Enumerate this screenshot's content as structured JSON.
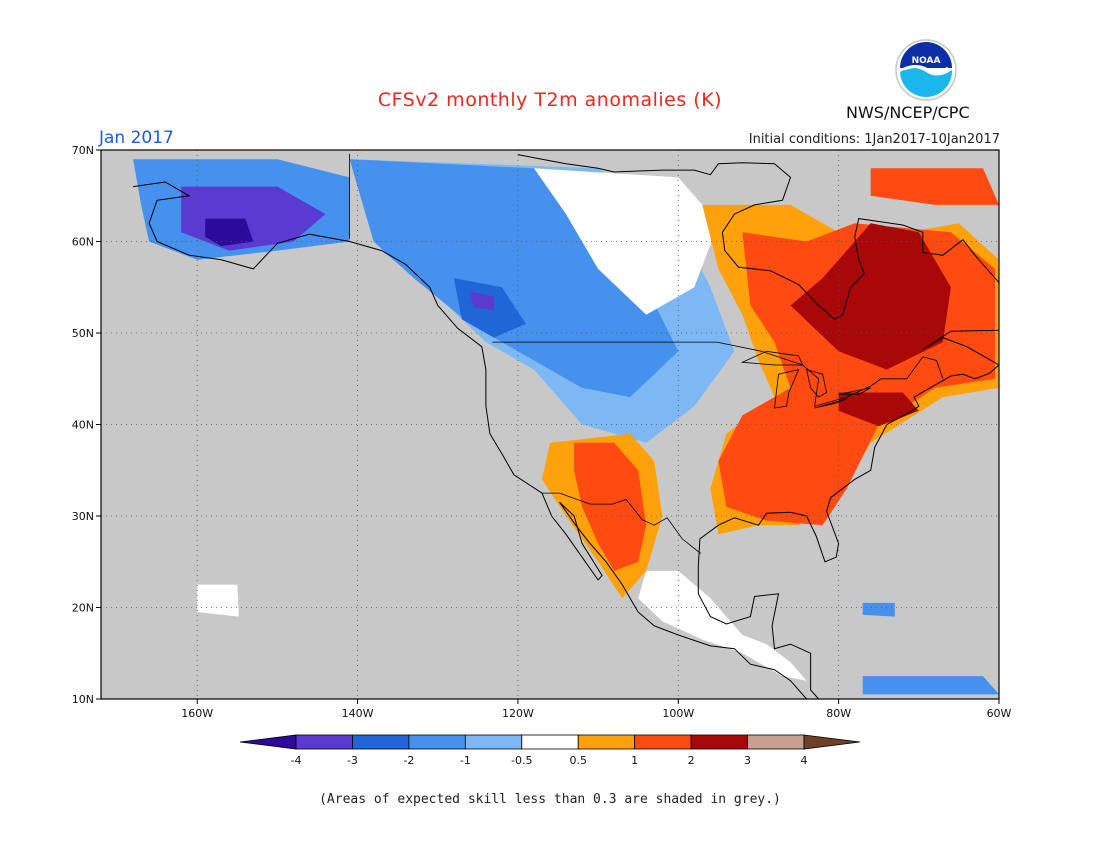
{
  "title": "CFSv2 monthly T2m anomalies (K)",
  "month_label": "Jan 2017",
  "initial_conditions": "Initial conditions: 1Jan2017-10Jan2017",
  "agency": "NWS/NCEP/CPC",
  "logo_text": "NOAA",
  "footnote": "(Areas of expected skill less than 0.3 are shaded in grey.)",
  "map": {
    "lon_range": [
      -172,
      -60
    ],
    "lat_range": [
      10,
      70
    ],
    "lat_ticks": [
      {
        "value": 70,
        "label": "70N"
      },
      {
        "value": 60,
        "label": "60N"
      },
      {
        "value": 50,
        "label": "50N"
      },
      {
        "value": 40,
        "label": "40N"
      },
      {
        "value": 30,
        "label": "30N"
      },
      {
        "value": 20,
        "label": "20N"
      },
      {
        "value": 10,
        "label": "10N"
      }
    ],
    "lon_ticks": [
      {
        "value": -160,
        "label": "160W"
      },
      {
        "value": -140,
        "label": "140W"
      },
      {
        "value": -120,
        "label": "120W"
      },
      {
        "value": -100,
        "label": "100W"
      },
      {
        "value": -80,
        "label": "80W"
      },
      {
        "value": -60,
        "label": "60W"
      }
    ],
    "grid": "dotted"
  },
  "colors": {
    "skill_grey": "#c8c8c8",
    "ocean": "#c8c8c8",
    "coast": "#000000",
    "bins": [
      "#2c0a9a",
      "#5a3ad0",
      "#2166d8",
      "#4690ee",
      "#7db8f5",
      "#ffffff",
      "#ffa10a",
      "#ff4a12",
      "#a80808",
      "#c8a090",
      "#6e4028"
    ]
  },
  "colorbar": {
    "ticks": [
      "-4",
      "-3",
      "-2",
      "-1",
      "-0.5",
      "0.5",
      "1",
      "2",
      "3",
      "4"
    ],
    "colors": [
      "#2c0a9a",
      "#5a3ad0",
      "#2166d8",
      "#4690ee",
      "#7db8f5",
      "#ffffff",
      "#ffa10a",
      "#ff4a12",
      "#a80808",
      "#c8a090",
      "#6e4028"
    ]
  },
  "regions": [
    {
      "name": "alaska-cold",
      "color": "#4690ee",
      "lonlat": [
        [
          -168,
          69
        ],
        [
          -150,
          69
        ],
        [
          -141,
          67
        ],
        [
          -141,
          60
        ],
        [
          -150,
          59
        ],
        [
          -160,
          58
        ],
        [
          -166,
          60
        ],
        [
          -167,
          64
        ]
      ]
    },
    {
      "name": "alaska-colder",
      "color": "#5a3ad0",
      "lonlat": [
        [
          -162,
          66
        ],
        [
          -150,
          66
        ],
        [
          -144,
          63
        ],
        [
          -148,
          60
        ],
        [
          -156,
          59
        ],
        [
          -162,
          61
        ]
      ]
    },
    {
      "name": "alaska-coldest",
      "color": "#2c0a9a",
      "lonlat": [
        [
          -159,
          62.5
        ],
        [
          -154,
          62.5
        ],
        [
          -153,
          60
        ],
        [
          -157,
          59.5
        ],
        [
          -159,
          60.5
        ]
      ]
    },
    {
      "name": "canada-light-blue",
      "color": "#7db8f5",
      "lonlat": [
        [
          -141,
          69
        ],
        [
          -110,
          68
        ],
        [
          -100,
          62
        ],
        [
          -96,
          55
        ],
        [
          -93,
          48
        ],
        [
          -98,
          42
        ],
        [
          -104,
          38
        ],
        [
          -112,
          40
        ],
        [
          -118,
          46
        ],
        [
          -124,
          49
        ],
        [
          -130,
          54
        ],
        [
          -137,
          59
        ]
      ]
    },
    {
      "name": "canada-blue",
      "color": "#4690ee",
      "lonlat": [
        [
          -141,
          69
        ],
        [
          -118,
          68
        ],
        [
          -110,
          62
        ],
        [
          -104,
          55
        ],
        [
          -100,
          48
        ],
        [
          -106,
          43
        ],
        [
          -112,
          44
        ],
        [
          -120,
          48
        ],
        [
          -126,
          51
        ],
        [
          -133,
          56
        ],
        [
          -138,
          60
        ]
      ]
    },
    {
      "name": "bc-dark-blue",
      "color": "#2166d8",
      "lonlat": [
        [
          -128,
          56
        ],
        [
          -122,
          55
        ],
        [
          -119,
          51
        ],
        [
          -123,
          49.5
        ],
        [
          -127,
          51.5
        ]
      ]
    },
    {
      "name": "bc-purple",
      "color": "#5a3ad0",
      "lonlat": [
        [
          -126,
          54.5
        ],
        [
          -123,
          54
        ],
        [
          -123,
          52.5
        ],
        [
          -125.5,
          52.8
        ]
      ]
    },
    {
      "name": "hudson-white",
      "color": "#ffffff",
      "lonlat": [
        [
          -118,
          68
        ],
        [
          -100,
          67
        ],
        [
          -95,
          62
        ],
        [
          -98,
          55
        ],
        [
          -104,
          52
        ],
        [
          -110,
          57
        ],
        [
          -114,
          63
        ]
      ]
    },
    {
      "name": "east-orange",
      "color": "#ffa10a",
      "lonlat": [
        [
          -97,
          64
        ],
        [
          -86,
          64
        ],
        [
          -78,
          60
        ],
        [
          -65,
          62
        ],
        [
          -60,
          58
        ],
        [
          -60,
          44
        ],
        [
          -67,
          43
        ],
        [
          -76,
          38
        ],
        [
          -80,
          32
        ],
        [
          -85,
          29
        ],
        [
          -90,
          29
        ],
        [
          -95,
          28
        ],
        [
          -96,
          33
        ],
        [
          -94,
          39
        ],
        [
          -88,
          43
        ],
        [
          -90,
          47
        ],
        [
          -92,
          52
        ],
        [
          -95,
          57
        ]
      ]
    },
    {
      "name": "east-red",
      "color": "#ff4a12",
      "lonlat": [
        [
          -92,
          61
        ],
        [
          -84,
          60
        ],
        [
          -78,
          62
        ],
        [
          -66,
          61
        ],
        [
          -60.5,
          57
        ],
        [
          -60.5,
          45
        ],
        [
          -68,
          44
        ],
        [
          -75,
          40
        ],
        [
          -79,
          33
        ],
        [
          -82,
          29
        ],
        [
          -89,
          29.5
        ],
        [
          -94,
          31
        ],
        [
          -95,
          36
        ],
        [
          -92,
          41
        ],
        [
          -86,
          44
        ],
        [
          -88,
          49
        ],
        [
          -91,
          53
        ]
      ]
    },
    {
      "name": "quebec-dark-red",
      "color": "#a80808",
      "lonlat": [
        [
          -82,
          56
        ],
        [
          -76,
          62
        ],
        [
          -70,
          61
        ],
        [
          -66,
          55
        ],
        [
          -67,
          49
        ],
        [
          -74,
          46
        ],
        [
          -80,
          48
        ],
        [
          -86,
          53
        ]
      ]
    },
    {
      "name": "northeast-dark-red",
      "color": "#a80808",
      "lonlat": [
        [
          -80,
          43.5
        ],
        [
          -72,
          43.5
        ],
        [
          -70,
          41.5
        ],
        [
          -75,
          39.8
        ],
        [
          -80,
          41.5
        ]
      ]
    },
    {
      "name": "greenland-red",
      "color": "#ff4a12",
      "lonlat": [
        [
          -76,
          68
        ],
        [
          -62,
          68
        ],
        [
          -60,
          64
        ],
        [
          -68,
          64
        ],
        [
          -76,
          65
        ]
      ]
    },
    {
      "name": "southwest-orange",
      "color": "#ffa10a",
      "lonlat": [
        [
          -116,
          38
        ],
        [
          -106,
          39
        ],
        [
          -103,
          36
        ],
        [
          -102,
          30
        ],
        [
          -104,
          24
        ],
        [
          -107,
          21
        ],
        [
          -110,
          25
        ],
        [
          -114,
          30
        ],
        [
          -117,
          34
        ]
      ]
    },
    {
      "name": "southwest-red",
      "color": "#ff4a12",
      "lonlat": [
        [
          -113,
          38
        ],
        [
          -108,
          38
        ],
        [
          -105,
          35
        ],
        [
          -104,
          29
        ],
        [
          -105,
          25
        ],
        [
          -108,
          24
        ],
        [
          -110,
          27
        ],
        [
          -112,
          31
        ],
        [
          -113,
          35
        ]
      ]
    },
    {
      "name": "mexico-white",
      "color": "#ffffff",
      "lonlat": [
        [
          -104,
          24
        ],
        [
          -100,
          24
        ],
        [
          -96,
          21
        ],
        [
          -94,
          19
        ],
        [
          -92,
          17
        ],
        [
          -89,
          16
        ],
        [
          -86,
          14
        ],
        [
          -84,
          12
        ],
        [
          -87,
          12.5
        ],
        [
          -92,
          15
        ],
        [
          -97,
          16.5
        ],
        [
          -102,
          18.5
        ],
        [
          -105,
          21
        ]
      ]
    },
    {
      "name": "caribbean-blue",
      "color": "#4690ee",
      "lonlat": [
        [
          -77,
          20.5
        ],
        [
          -73,
          20.5
        ],
        [
          -73,
          19
        ],
        [
          -77,
          19.2
        ]
      ]
    },
    {
      "name": "venezuela-blue",
      "color": "#4690ee",
      "lonlat": [
        [
          -77,
          12.5
        ],
        [
          -62,
          12.5
        ],
        [
          -60,
          10.5
        ],
        [
          -77,
          10.5
        ]
      ]
    },
    {
      "name": "hawaii-white",
      "color": "#ffffff",
      "lonlat": [
        [
          -160,
          22.5
        ],
        [
          -155,
          22.5
        ],
        [
          -154.8,
          19
        ],
        [
          -160,
          19.5
        ]
      ]
    }
  ],
  "coastlines": [
    [
      [
        -168,
        66
      ],
      [
        -164,
        66.5
      ],
      [
        -161,
        65
      ],
      [
        -165,
        64.5
      ],
      [
        -166,
        62
      ],
      [
        -165,
        60
      ],
      [
        -161,
        58.5
      ],
      [
        -157,
        58
      ],
      [
        -153,
        57
      ],
      [
        -150,
        59.8
      ],
      [
        -146,
        60.8
      ],
      [
        -141,
        60
      ],
      [
        -137,
        59
      ],
      [
        -134,
        57.5
      ],
      [
        -131,
        55
      ],
      [
        -130,
        53
      ],
      [
        -127.5,
        50.5
      ],
      [
        -124.5,
        48.5
      ],
      [
        -124,
        46
      ],
      [
        -124,
        42
      ],
      [
        -123.5,
        39
      ],
      [
        -121.8,
        36.5
      ],
      [
        -120.5,
        34.5
      ],
      [
        -117,
        32.5
      ],
      [
        -115.8,
        30
      ],
      [
        -114,
        28
      ],
      [
        -112,
        25.5
      ],
      [
        -110,
        23
      ],
      [
        -109.5,
        23.5
      ],
      [
        -112,
        27
      ],
      [
        -113,
        30
      ],
      [
        -114.8,
        31.5
      ],
      [
        -112.8,
        29
      ],
      [
        -111,
        27
      ],
      [
        -109,
        25
      ],
      [
        -107,
        22.5
      ],
      [
        -105,
        19.5
      ],
      [
        -103,
        18
      ],
      [
        -100,
        17
      ],
      [
        -96,
        15.8
      ],
      [
        -93,
        15.5
      ],
      [
        -91,
        13.8
      ],
      [
        -88,
        13.2
      ],
      [
        -86,
        12
      ],
      [
        -84,
        10
      ],
      [
        -83,
        9
      ],
      [
        -82.5,
        10
      ],
      [
        -83.5,
        11
      ],
      [
        -83.5,
        15
      ],
      [
        -86,
        16
      ],
      [
        -88,
        15.5
      ],
      [
        -88.3,
        18
      ],
      [
        -87.5,
        21.5
      ],
      [
        -90.5,
        21.2
      ],
      [
        -91,
        19
      ],
      [
        -94,
        18.2
      ],
      [
        -96,
        19
      ],
      [
        -97.5,
        21.5
      ],
      [
        -97.5,
        24.5
      ],
      [
        -97.3,
        27.5
      ],
      [
        -95,
        29
      ],
      [
        -93,
        29.8
      ],
      [
        -90,
        29
      ],
      [
        -89,
        30.3
      ],
      [
        -86,
        30.4
      ],
      [
        -84,
        30
      ],
      [
        -82.8,
        27.8
      ],
      [
        -81.7,
        25
      ],
      [
        -80.3,
        25.5
      ],
      [
        -80,
        27
      ],
      [
        -81.5,
        30.5
      ],
      [
        -81,
        32
      ],
      [
        -78,
        34
      ],
      [
        -76,
        35
      ],
      [
        -75.5,
        37.5
      ],
      [
        -74,
        40
      ],
      [
        -71,
        41.4
      ],
      [
        -70,
        42
      ],
      [
        -70.6,
        43
      ],
      [
        -67,
        44.8
      ],
      [
        -66,
        45.3
      ],
      [
        -64.5,
        45.5
      ],
      [
        -63,
        45
      ],
      [
        -61.2,
        45.6
      ],
      [
        -60,
        46.5
      ],
      [
        -64,
        48.5
      ],
      [
        -67,
        49.5
      ],
      [
        -69.5,
        48.2
      ],
      [
        -66,
        50.2
      ],
      [
        -60,
        50.3
      ],
      [
        -57,
        51.5
      ],
      [
        -56,
        53
      ],
      [
        -58,
        54
      ],
      [
        -60,
        55.5
      ],
      [
        -61.5,
        57
      ],
      [
        -63,
        58.5
      ],
      [
        -64.5,
        60.2
      ],
      [
        -67,
        58.5
      ],
      [
        -69.5,
        58.8
      ],
      [
        -69.5,
        61
      ],
      [
        -72,
        61.8
      ],
      [
        -77.5,
        62.5
      ],
      [
        -78,
        60.5
      ],
      [
        -77.5,
        58
      ],
      [
        -76.8,
        56.5
      ],
      [
        -78.5,
        55
      ],
      [
        -79.5,
        52
      ],
      [
        -80.5,
        51.5
      ],
      [
        -82.5,
        53
      ],
      [
        -85,
        55.3
      ],
      [
        -88.5,
        56.8
      ],
      [
        -92.5,
        57.2
      ],
      [
        -94.2,
        59
      ],
      [
        -94.5,
        61
      ],
      [
        -93,
        63
      ],
      [
        -90.5,
        64
      ],
      [
        -87,
        64.5
      ],
      [
        -86,
        67
      ],
      [
        -88,
        68.5
      ],
      [
        -92,
        68.6
      ],
      [
        -95,
        68.5
      ],
      [
        -96,
        67.3
      ],
      [
        -98,
        67.8
      ],
      [
        -102,
        67.8
      ],
      [
        -108,
        67.6
      ],
      [
        -110,
        68
      ],
      [
        -114,
        68.5
      ],
      [
        -117,
        69
      ],
      [
        -120,
        69.5
      ]
    ]
  ],
  "lakes": [
    [
      [
        -92,
        46.8
      ],
      [
        -89,
        48
      ],
      [
        -85,
        47.5
      ],
      [
        -84.5,
        46.5
      ],
      [
        -88,
        46.5
      ]
    ],
    [
      [
        -88,
        41.8
      ],
      [
        -87.5,
        45.5
      ],
      [
        -85,
        46
      ],
      [
        -86.2,
        43.5
      ],
      [
        -86.5,
        42
      ]
    ],
    [
      [
        -84,
        46
      ],
      [
        -82,
        45.5
      ],
      [
        -81.5,
        43.5
      ],
      [
        -82.5,
        43
      ],
      [
        -83.5,
        44
      ]
    ],
    [
      [
        -83,
        41.8
      ],
      [
        -79,
        42.8
      ],
      [
        -80.5,
        42.3
      ]
    ],
    [
      [
        -80,
        43.3
      ],
      [
        -76,
        44
      ],
      [
        -77.5,
        43.3
      ]
    ]
  ],
  "borders": [
    [
      [
        -123.2,
        49
      ],
      [
        -95.2,
        49
      ],
      [
        -89.6,
        48
      ],
      [
        -84.5,
        46.5
      ],
      [
        -82.5,
        45
      ],
      [
        -83,
        42
      ],
      [
        -79,
        43
      ],
      [
        -76,
        44.2
      ],
      [
        -74.7,
        45
      ],
      [
        -71.5,
        45
      ],
      [
        -69.5,
        47.4
      ],
      [
        -67.8,
        47
      ],
      [
        -67,
        45
      ]
    ],
    [
      [
        -141,
        69.6
      ],
      [
        -141,
        60.3
      ]
    ],
    [
      [
        -117,
        32.5
      ],
      [
        -114.8,
        32.5
      ],
      [
        -111,
        31.3
      ],
      [
        -108.2,
        31.3
      ],
      [
        -106.5,
        31.8
      ],
      [
        -104.5,
        29.6
      ],
      [
        -103,
        29
      ],
      [
        -101.4,
        29.8
      ],
      [
        -99.5,
        27.5
      ],
      [
        -97.2,
        25.9
      ]
    ]
  ]
}
